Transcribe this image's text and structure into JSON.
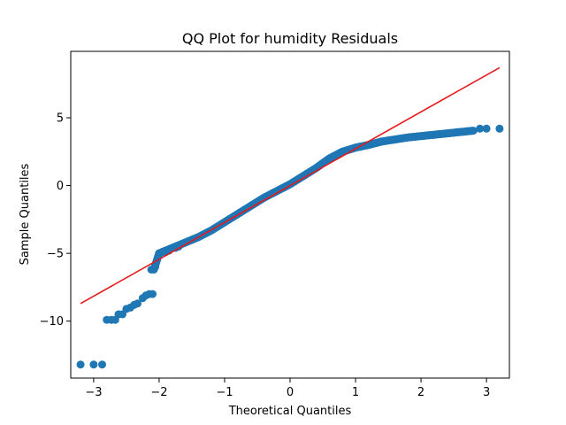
{
  "chart_data": {
    "type": "scatter",
    "title": "QQ Plot for humidity Residuals",
    "xlabel": "Theoretical Quantiles",
    "ylabel": "Sample Quantiles",
    "xlim": [
      -3.35,
      3.35
    ],
    "ylim": [
      -14.2,
      9.9
    ],
    "xticks": [
      -3,
      -2,
      -1,
      0,
      1,
      2,
      3
    ],
    "yticks": [
      -10,
      -5,
      0,
      5
    ],
    "tick_labels_x": [
      "−3",
      "−2",
      "−1",
      "0",
      "1",
      "2",
      "3"
    ],
    "tick_labels_y": [
      "−10",
      "−5",
      "0",
      "5"
    ],
    "grid": false,
    "point_color": "#1f77b4",
    "line_color": "#e41a1c",
    "reference_line": {
      "x": [
        -3.2,
        3.2
      ],
      "y": [
        -8.7,
        8.7
      ]
    },
    "series": [
      {
        "curve": [
          [
            -2.08,
            -6.2
          ],
          [
            -2.0,
            -5.0
          ],
          [
            -1.8,
            -4.6
          ],
          [
            -1.6,
            -4.2
          ],
          [
            -1.4,
            -3.8
          ],
          [
            -1.2,
            -3.3
          ],
          [
            -1.0,
            -2.7
          ],
          [
            -0.8,
            -2.1
          ],
          [
            -0.6,
            -1.5
          ],
          [
            -0.4,
            -0.9
          ],
          [
            -0.2,
            -0.4
          ],
          [
            0.0,
            0.1
          ],
          [
            0.2,
            0.7
          ],
          [
            0.4,
            1.3
          ],
          [
            0.6,
            2.0
          ],
          [
            0.8,
            2.5
          ],
          [
            1.0,
            2.8
          ],
          [
            1.2,
            3.0
          ],
          [
            1.4,
            3.25
          ],
          [
            1.6,
            3.4
          ],
          [
            1.8,
            3.55
          ],
          [
            2.0,
            3.65
          ],
          [
            2.2,
            3.75
          ],
          [
            2.4,
            3.85
          ],
          [
            2.6,
            3.95
          ],
          [
            2.8,
            4.05
          ]
        ],
        "points": [
          [
            -3.2,
            -13.2
          ],
          [
            -3.0,
            -13.2
          ],
          [
            -2.87,
            -13.2
          ],
          [
            -2.8,
            -9.9
          ],
          [
            -2.73,
            -9.9
          ],
          [
            -2.67,
            -9.9
          ],
          [
            -2.62,
            -9.5
          ],
          [
            -2.56,
            -9.5
          ],
          [
            -2.5,
            -9.1
          ],
          [
            -2.44,
            -9.0
          ],
          [
            -2.38,
            -8.8
          ],
          [
            -2.33,
            -8.7
          ],
          [
            -2.25,
            -8.3
          ],
          [
            -2.2,
            -8.1
          ],
          [
            -2.15,
            -8.0
          ],
          [
            -2.1,
            -8.0
          ],
          [
            -2.12,
            -6.2
          ],
          [
            -2.06,
            -6.0
          ],
          [
            -2.0,
            -5.0
          ],
          [
            -1.95,
            -4.9
          ],
          [
            -1.9,
            -4.9
          ],
          [
            -1.85,
            -4.8
          ],
          [
            -1.75,
            -4.6
          ],
          [
            -1.7,
            -4.5
          ],
          [
            2.9,
            4.2
          ],
          [
            3.0,
            4.2
          ],
          [
            3.2,
            4.2
          ]
        ]
      }
    ]
  }
}
